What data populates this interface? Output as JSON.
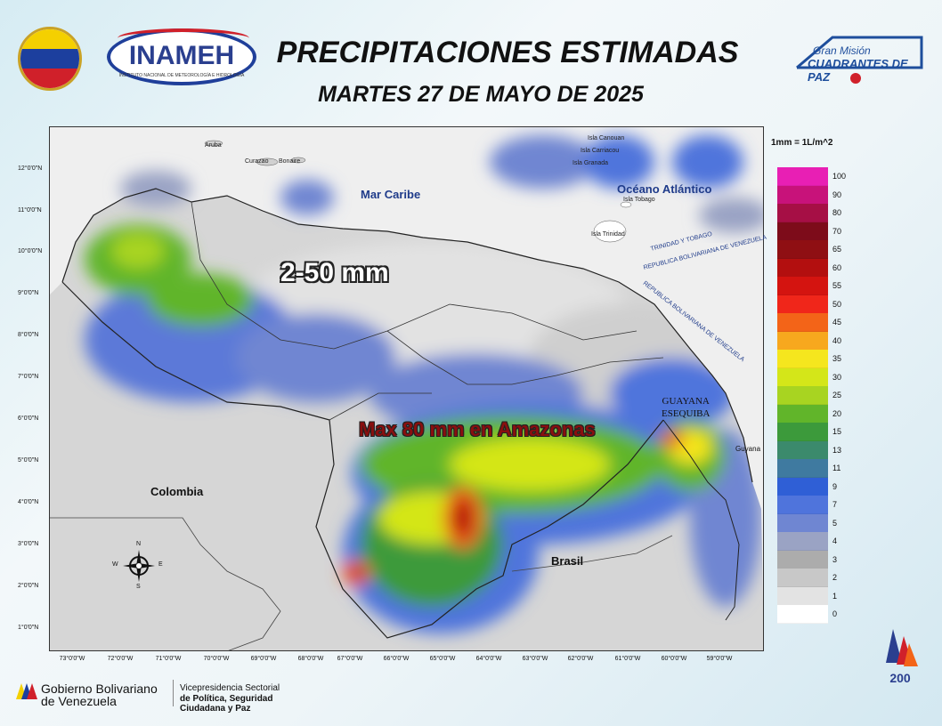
{
  "header": {
    "title": "PRECIPITACIONES ESTIMADAS",
    "subtitle": "MARTES 27 DE MAYO DE 2025",
    "logo_left_text": "INAMEH",
    "logo_left_subtext": "INSTITUTO NACIONAL DE METEOROLOGÍA E HIDROLOGÍA",
    "logo_right_line1": "Gran Misión",
    "logo_right_line2": "CUADRANTES DE PAZ"
  },
  "map": {
    "labels": {
      "caribe": "Mar Caribe",
      "atlantico": "Océano Atlántico",
      "colombia": "Colombia",
      "brasil": "Brasil",
      "guyana": "Guyana",
      "guayana_line1": "GUAYANA",
      "guayana_line2": "ESEQUIBA",
      "aruba": "Aruba",
      "curazao": "Curazao",
      "bonaire": "Bonaire",
      "granada": "Isla Granada",
      "carriacou": "Isla Carriacou",
      "canouan": "Isla Canouan",
      "tobago": "Isla Tobago",
      "trinidad": "Isla Trinidad",
      "border1": "TRINIDAD Y TOBAGO",
      "border2": "REPUBLICA BOLIVARIANA DE VENEZUELA"
    },
    "annotations": {
      "range": "2-50 mm",
      "max": "Max 80 mm en Amazonas"
    },
    "lat_ticks": [
      "12°0'0\"N",
      "11°0'0\"N",
      "10°0'0\"N",
      "9°0'0\"N",
      "8°0'0\"N",
      "7°0'0\"N",
      "6°0'0\"N",
      "5°0'0\"N",
      "4°0'0\"N",
      "3°0'0\"N",
      "2°0'0\"N",
      "1°0'0\"N"
    ],
    "lon_ticks": [
      "73°0'0\"W",
      "72°0'0\"W",
      "71°0'0\"W",
      "70°0'0\"W",
      "69°0'0\"W",
      "68°0'0\"W",
      "67°0'0\"W",
      "66°0'0\"W",
      "65°0'0\"W",
      "64°0'0\"W",
      "63°0'0\"W",
      "62°0'0\"W",
      "61°0'0\"W",
      "60°0'0\"W",
      "59°0'0\"W"
    ],
    "compass": {
      "n": "N",
      "s": "S",
      "e": "E",
      "w": "W"
    }
  },
  "legend": {
    "title": "1mm = 1L/m^2",
    "items": [
      {
        "value": "100",
        "color": "#e81fb4"
      },
      {
        "value": "90",
        "color": "#c8127a"
      },
      {
        "value": "80",
        "color": "#a60f45"
      },
      {
        "value": "70",
        "color": "#7d0c1a"
      },
      {
        "value": "65",
        "color": "#8f0f13"
      },
      {
        "value": "60",
        "color": "#b30f0f"
      },
      {
        "value": "55",
        "color": "#d41410"
      },
      {
        "value": "50",
        "color": "#f0261a"
      },
      {
        "value": "45",
        "color": "#f36418"
      },
      {
        "value": "40",
        "color": "#f7a81e"
      },
      {
        "value": "35",
        "color": "#f5e61e"
      },
      {
        "value": "30",
        "color": "#d4e619"
      },
      {
        "value": "25",
        "color": "#a8d421"
      },
      {
        "value": "20",
        "color": "#61b52a"
      },
      {
        "value": "15",
        "color": "#3c9a3b"
      },
      {
        "value": "13",
        "color": "#3b8a6c"
      },
      {
        "value": "11",
        "color": "#3f7aa0"
      },
      {
        "value": "9",
        "color": "#2f5fd6"
      },
      {
        "value": "7",
        "color": "#4f74dc"
      },
      {
        "value": "5",
        "color": "#6f86d2"
      },
      {
        "value": "4",
        "color": "#9aa3c4"
      },
      {
        "value": "3",
        "color": "#acacac"
      },
      {
        "value": "2",
        "color": "#c8c8c8"
      },
      {
        "value": "1",
        "color": "#e3e3e3"
      },
      {
        "value": "0",
        "color": "#ffffff"
      }
    ]
  },
  "footer": {
    "gov_line1": "Gobierno Bolivariano",
    "gov_line2": "de Venezuela",
    "vp_line1": "Vicepresidencia Sectorial",
    "vp_line2": "de Política, Seguridad Ciudadana y Paz",
    "bicentenario": "200"
  }
}
